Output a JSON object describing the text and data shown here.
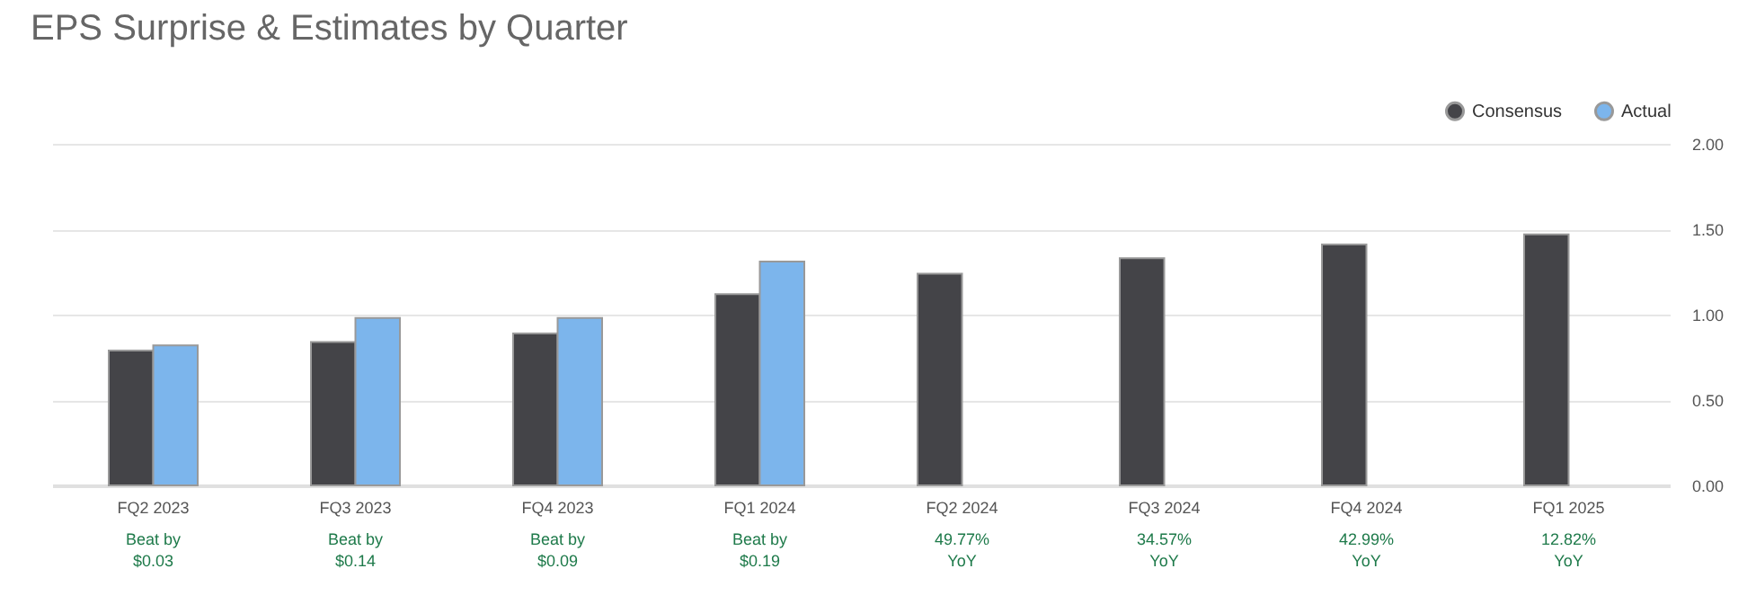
{
  "chart_data": {
    "type": "bar",
    "title": "EPS Surprise & Estimates by Quarter",
    "categories": [
      "FQ2 2023",
      "FQ3 2023",
      "FQ4 2023",
      "FQ1 2024",
      "FQ2 2024",
      "FQ3 2024",
      "FQ4 2024",
      "FQ1 2025"
    ],
    "series": [
      {
        "name": "Consensus",
        "color": "#444448",
        "values": [
          0.79,
          0.84,
          0.89,
          1.12,
          1.24,
          1.33,
          1.41,
          1.47
        ]
      },
      {
        "name": "Actual",
        "color": "#7cb5ec",
        "values": [
          0.82,
          0.98,
          0.98,
          1.31,
          null,
          null,
          null,
          null
        ]
      }
    ],
    "ylim": [
      0,
      2
    ],
    "yticks": [
      {
        "value": 0,
        "label": "0.00"
      },
      {
        "value": 0.5,
        "label": "0.50"
      },
      {
        "value": 1,
        "label": "1.00"
      },
      {
        "value": 1.5,
        "label": "1.50"
      },
      {
        "value": 2,
        "label": "2.00"
      }
    ],
    "grid": "y",
    "legend": "top right",
    "annotations": [
      "Beat by\n$0.03",
      "Beat by\n$0.14",
      "Beat by\n$0.09",
      "Beat by\n$0.19",
      "49.77%\nYoY",
      "34.57%\nYoY",
      "42.99%\nYoY",
      "12.82%\nYoY"
    ]
  }
}
